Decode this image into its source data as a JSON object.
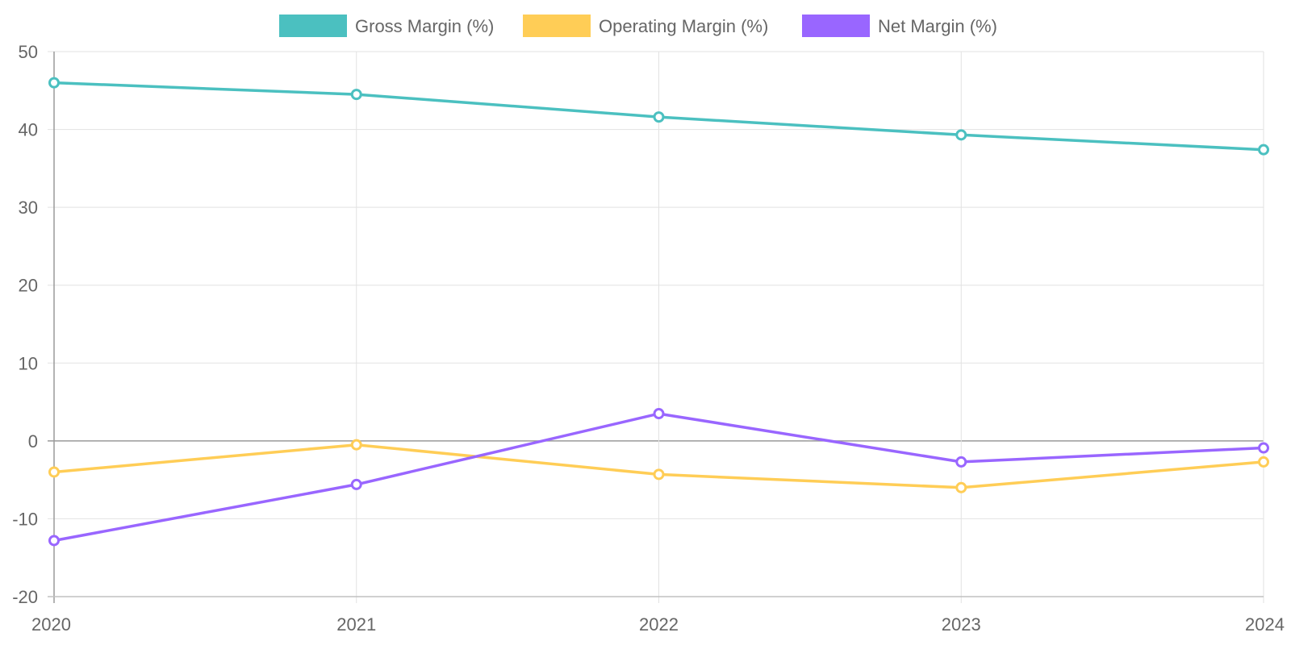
{
  "chart_data": {
    "type": "line",
    "title": "",
    "xlabel": "",
    "ylabel": "",
    "x": [
      "2020",
      "2021",
      "2022",
      "2023",
      "2024"
    ],
    "ylim": [
      -20,
      50
    ],
    "yticks": [
      "50",
      "40",
      "30",
      "20",
      "10",
      "0",
      "-10",
      "-20"
    ],
    "grid": true,
    "legend_position": "top-center",
    "series": [
      {
        "name": "Gross Margin (%)",
        "color": "#4bc0c0",
        "values": [
          46.0,
          44.5,
          41.6,
          39.3,
          37.4
        ]
      },
      {
        "name": "Operating Margin (%)",
        "color": "#ffcd56",
        "values": [
          -4.0,
          -0.5,
          -4.3,
          -6.0,
          -2.7
        ]
      },
      {
        "name": "Net Margin (%)",
        "color": "#9966ff",
        "values": [
          -12.8,
          -5.6,
          3.5,
          -2.7,
          -0.9
        ]
      }
    ]
  }
}
